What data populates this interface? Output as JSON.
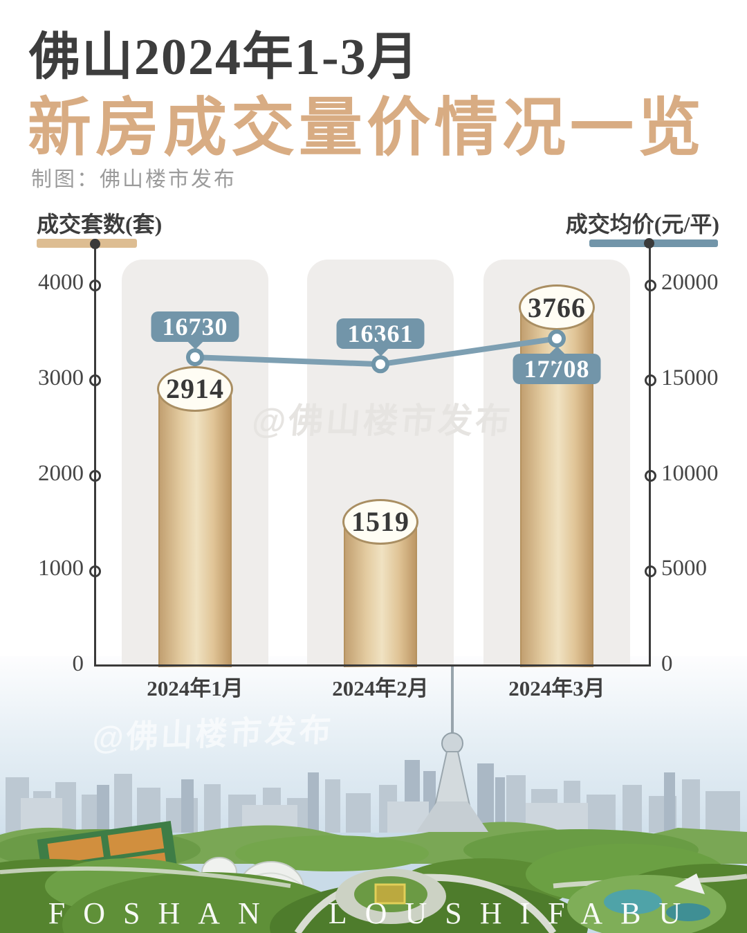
{
  "header": {
    "title": "佛山2024年1-3月",
    "subtitle": "新房成交量价情况一览",
    "credit": "制图：佛山楼市发布"
  },
  "chart_data": {
    "type": "bar",
    "title": "佛山2024年1-3月新房成交量价情况一览",
    "categories": [
      "2024年1月",
      "2024年2月",
      "2024年3月"
    ],
    "series": [
      {
        "name": "成交套数(套)",
        "type": "bar",
        "axis": "left",
        "values": [
          2914,
          1519,
          3766
        ]
      },
      {
        "name": "成交均价(元/平)",
        "type": "line",
        "axis": "right",
        "values": [
          16730,
          16361,
          17708
        ]
      }
    ],
    "left_axis": {
      "label": "成交套数(套)",
      "ticks": [
        0,
        1000,
        2000,
        3000,
        4000
      ],
      "range": [
        0,
        4400
      ]
    },
    "right_axis": {
      "label": "成交均价(元/平)",
      "ticks": [
        0,
        5000,
        10000,
        15000,
        20000
      ],
      "range": [
        0,
        22000
      ]
    },
    "grid": false,
    "legend_position": "top"
  },
  "colors": {
    "bar": "#ddbd92",
    "bar_edge": "#b5925f",
    "line": "#7d9fb2",
    "marker_ring": "#6f95a9",
    "badge": "#7295a9",
    "title_accent": "#d8ac83",
    "axis": "#3a3a3a"
  },
  "watermarks": {
    "chart": "@佛山楼市发布",
    "photo": "@佛山楼市发布"
  },
  "footer": {
    "caption": "FOSHAN LOUSHIFABU"
  }
}
